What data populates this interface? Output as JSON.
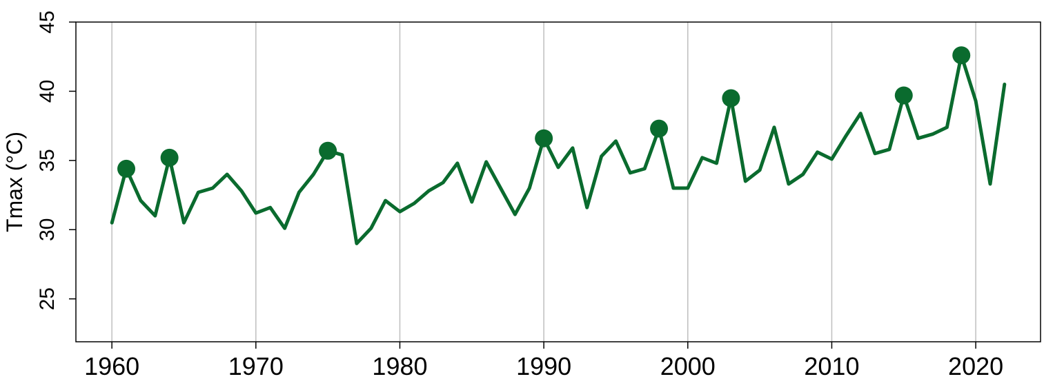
{
  "colors": {
    "line": "#0a6b2e",
    "grid": "#bebebe",
    "axis": "#000000"
  },
  "chart_data": {
    "type": "line",
    "title": "",
    "xlabel": "",
    "ylabel": "Tmax (°C)",
    "xlim": [
      1957.5,
      2024.5
    ],
    "ylim": [
      21.9,
      45
    ],
    "x_ticks": [
      1960,
      1970,
      1980,
      1990,
      2000,
      2010,
      2020
    ],
    "y_ticks": [
      25,
      30,
      35,
      40,
      45
    ],
    "grid": "vertical",
    "legend": "none",
    "series": [
      {
        "x": [
          1960,
          1961,
          1962,
          1963,
          1964,
          1965,
          1966,
          1967,
          1968,
          1969,
          1970,
          1971,
          1972,
          1973,
          1974,
          1975,
          1976,
          1977,
          1978,
          1979,
          1980,
          1981,
          1982,
          1983,
          1984,
          1985,
          1986,
          1987,
          1988,
          1989,
          1990,
          1991,
          1992,
          1993,
          1994,
          1995,
          1996,
          1997,
          1998,
          1999,
          2000,
          2001,
          2002,
          2003,
          2004,
          2005,
          2006,
          2007,
          2008,
          2009,
          2010,
          2011,
          2012,
          2013,
          2014,
          2015,
          2016,
          2017,
          2018,
          2019,
          2020,
          2021,
          2022
        ],
        "y": [
          30.5,
          34.4,
          32.1,
          31.0,
          35.2,
          30.5,
          32.7,
          33.0,
          34.0,
          32.8,
          31.2,
          31.6,
          30.1,
          32.7,
          34.0,
          35.7,
          35.4,
          29.0,
          30.1,
          32.1,
          31.3,
          31.9,
          32.8,
          33.4,
          34.8,
          32.0,
          34.9,
          33.0,
          31.1,
          33.0,
          36.6,
          34.5,
          35.9,
          31.6,
          35.3,
          36.4,
          34.1,
          34.4,
          37.3,
          33.0,
          33.0,
          35.2,
          34.8,
          39.5,
          33.5,
          34.3,
          37.4,
          33.3,
          34.0,
          35.6,
          35.1,
          36.8,
          38.4,
          35.5,
          35.8,
          39.7,
          36.6,
          36.9,
          37.4,
          42.6,
          39.3,
          33.3,
          40.5
        ]
      }
    ],
    "highlighted_points": [
      {
        "x": 1961,
        "y": 34.4
      },
      {
        "x": 1964,
        "y": 35.2
      },
      {
        "x": 1975,
        "y": 35.7
      },
      {
        "x": 1990,
        "y": 36.6
      },
      {
        "x": 1998,
        "y": 37.3
      },
      {
        "x": 2003,
        "y": 39.5
      },
      {
        "x": 2015,
        "y": 39.7
      },
      {
        "x": 2019,
        "y": 42.6
      }
    ]
  }
}
